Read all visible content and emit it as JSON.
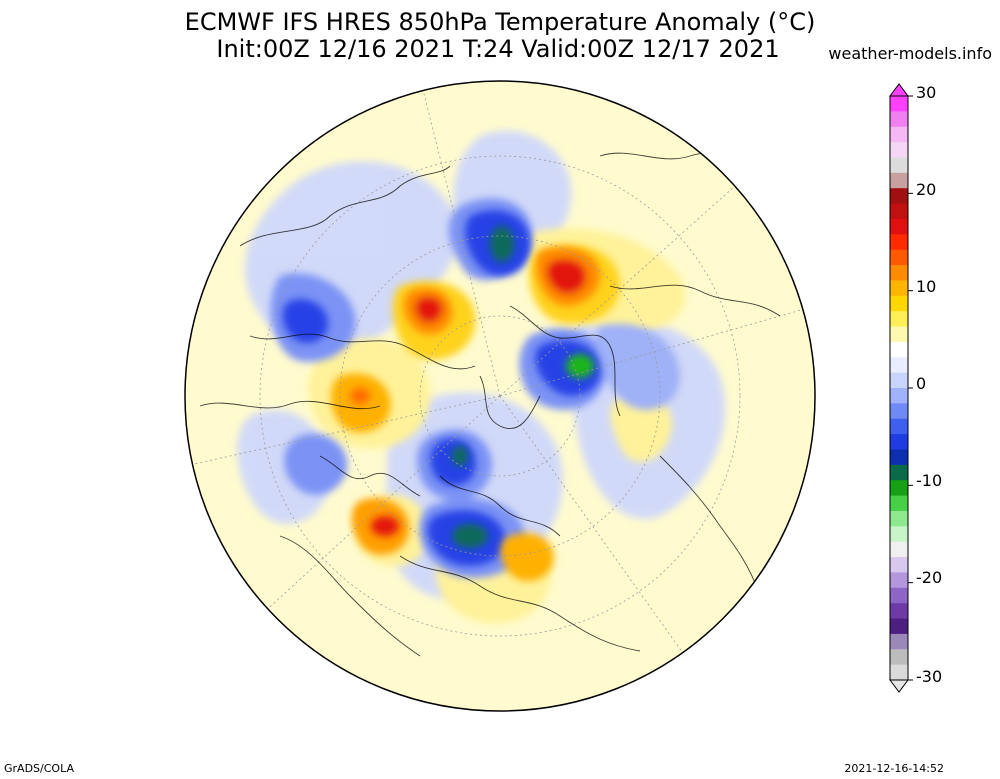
{
  "header": {
    "title_line1": "ECMWF IFS HRES 850hPa Temperature Anomaly (°C)",
    "title_line2": "Init:00Z 12/16 2021 T:24 Valid:00Z 12/17 2021",
    "site": "weather-models.info"
  },
  "colorbar": {
    "labels": [
      "30",
      "20",
      "10",
      "0",
      "-10",
      "-20",
      "-30"
    ],
    "colors": [
      "#c9c9c9",
      "#6e3aa6",
      "#8d5fc1",
      "#b58fd8",
      "#e0d2f0",
      "#f5f5f5",
      "#b9f6b9",
      "#5fe05f",
      "#18b418",
      "#0b7a3f",
      "#0a4fa8",
      "#1f3fe0",
      "#3a5cf2",
      "#6b86f6",
      "#9fb4fb",
      "#cfdafd",
      "#eef2ff",
      "#ffffff",
      "#fffbd6",
      "#fff39a",
      "#ffe44a",
      "#ffc800",
      "#ff9e00",
      "#ff6a00",
      "#ff3000",
      "#e01010",
      "#b30f0f",
      "#8b0c0c",
      "#d6a6a6",
      "#e8c4e8",
      "#f5b0f0",
      "#ff50ff"
    ],
    "colors_comment_ignore": ""
  },
  "map": {
    "background": "#fffbcf",
    "anomaly_colors": {
      "cold_light": "#cfd8fb",
      "cold_mid": "#7b93f5",
      "cold_strong": "#2743e6",
      "cold_extreme": "#0d6a5a",
      "cold_green": "#1db51d",
      "warm_light": "#fff29a",
      "warm_mid": "#ffd21a",
      "warm_strong": "#ff8a00",
      "warm_extreme": "#e3160f"
    }
  },
  "footer": {
    "left": "GrADS/COLA",
    "right": "2021-12-16-14:52"
  }
}
